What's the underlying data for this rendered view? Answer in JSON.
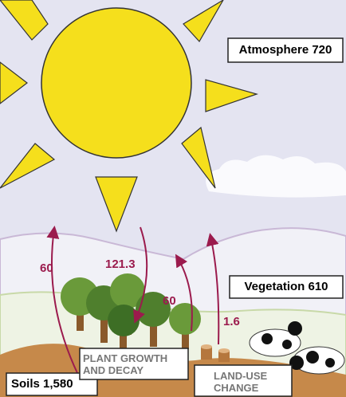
{
  "boxes": {
    "atmosphere": "Atmosphere 720",
    "vegetation": "Vegetation 610",
    "soils": "Soils 1,580",
    "plant_growth": [
      "PLANT GROWTH",
      "AND DECAY"
    ],
    "land_use": [
      "LAND-USE",
      "CHANGE"
    ]
  },
  "flows": [
    {
      "label": "60"
    },
    {
      "label": "121.3"
    },
    {
      "label": "60"
    },
    {
      "label": "1.6"
    }
  ]
}
